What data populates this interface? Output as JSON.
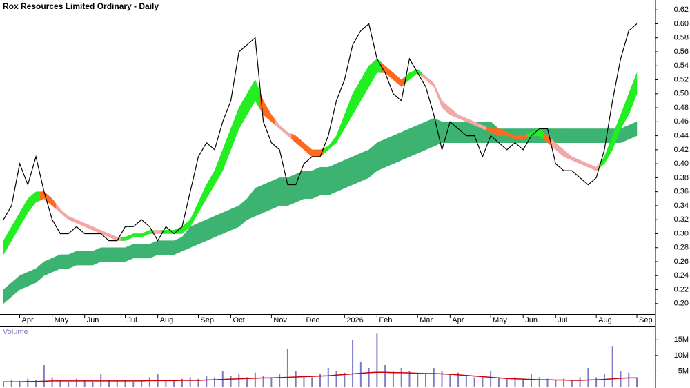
{
  "chart_data": [
    {
      "type": "line",
      "title": "Rox Resources Limited Ordinary - Daily",
      "categories": [
        null,
        null,
        "Apr",
        null,
        null,
        null,
        "May",
        null,
        null,
        null,
        "Jun",
        null,
        null,
        null,
        null,
        "Jul",
        null,
        null,
        null,
        "Aug",
        null,
        null,
        null,
        null,
        "Sep",
        null,
        null,
        null,
        "Oct",
        null,
        null,
        null,
        null,
        "Nov",
        null,
        null,
        null,
        "Dec",
        null,
        null,
        null,
        null,
        "2026",
        null,
        null,
        null,
        "Feb",
        null,
        null,
        null,
        null,
        "Mar",
        null,
        null,
        null,
        "Apr",
        null,
        null,
        null,
        null,
        "May",
        null,
        null,
        null,
        "Jun",
        null,
        null,
        null,
        "Jul",
        null,
        null,
        null,
        null,
        "Aug",
        null,
        null,
        null,
        null,
        "Sep"
      ],
      "series": [
        {
          "color": "#000000",
          "values": [
            0.32,
            0.34,
            0.4,
            0.37,
            0.41,
            0.36,
            0.32,
            0.3,
            0.3,
            0.31,
            0.3,
            0.3,
            0.3,
            0.29,
            0.29,
            0.31,
            0.31,
            0.32,
            0.31,
            0.29,
            0.31,
            0.3,
            0.31,
            0.36,
            0.41,
            0.43,
            0.42,
            0.46,
            0.49,
            0.56,
            0.57,
            0.58,
            0.46,
            0.43,
            0.42,
            0.37,
            0.37,
            0.4,
            0.41,
            0.41,
            0.44,
            0.49,
            0.52,
            0.57,
            0.59,
            0.6,
            0.55,
            0.53,
            0.5,
            0.49,
            0.55,
            0.53,
            0.51,
            0.47,
            0.42,
            0.46,
            0.45,
            0.44,
            0.44,
            0.41,
            0.44,
            0.43,
            0.42,
            0.43,
            0.42,
            0.44,
            0.45,
            0.45,
            0.4,
            0.39,
            0.39,
            0.38,
            0.37,
            0.38,
            0.42,
            0.49,
            0.55,
            0.59,
            0.6
          ]
        }
      ],
      "bands": [
        {
          "color": "#3cb371",
          "lower": [
            0.2,
            0.21,
            0.22,
            0.225,
            0.23,
            0.24,
            0.245,
            0.25,
            0.25,
            0.255,
            0.255,
            0.255,
            0.26,
            0.26,
            0.26,
            0.26,
            0.265,
            0.265,
            0.265,
            0.27,
            0.27,
            0.27,
            0.275,
            0.28,
            0.285,
            0.29,
            0.295,
            0.3,
            0.305,
            0.31,
            0.32,
            0.325,
            0.33,
            0.335,
            0.34,
            0.34,
            0.345,
            0.35,
            0.35,
            0.355,
            0.355,
            0.36,
            0.365,
            0.37,
            0.375,
            0.38,
            0.39,
            0.395,
            0.4,
            0.405,
            0.41,
            0.415,
            0.42,
            0.425,
            0.43,
            0.43,
            0.43,
            0.43,
            0.43,
            0.43,
            0.43,
            0.43,
            0.43,
            0.43,
            0.43,
            0.43,
            0.43,
            0.43,
            0.43,
            0.43,
            0.43,
            0.43,
            0.43,
            0.43,
            0.43,
            0.43,
            0.43,
            0.435,
            0.44
          ],
          "upper": [
            0.22,
            0.23,
            0.24,
            0.245,
            0.25,
            0.26,
            0.265,
            0.27,
            0.27,
            0.275,
            0.275,
            0.275,
            0.28,
            0.28,
            0.28,
            0.28,
            0.285,
            0.285,
            0.285,
            0.29,
            0.29,
            0.29,
            0.295,
            0.31,
            0.315,
            0.32,
            0.325,
            0.33,
            0.335,
            0.34,
            0.35,
            0.365,
            0.37,
            0.375,
            0.38,
            0.38,
            0.385,
            0.39,
            0.39,
            0.395,
            0.395,
            0.4,
            0.405,
            0.41,
            0.415,
            0.42,
            0.43,
            0.435,
            0.44,
            0.445,
            0.45,
            0.455,
            0.46,
            0.465,
            0.46,
            0.46,
            0.46,
            0.46,
            0.46,
            0.46,
            0.46,
            0.45,
            0.45,
            0.45,
            0.45,
            0.45,
            0.45,
            0.45,
            0.45,
            0.45,
            0.45,
            0.45,
            0.45,
            0.45,
            0.45,
            0.45,
            0.45,
            0.455,
            0.46
          ]
        },
        {
          "lower": [
            0.27,
            0.29,
            0.31,
            0.33,
            0.345,
            0.35,
            0.34,
            0.33,
            0.32,
            0.315,
            0.31,
            0.305,
            0.3,
            0.295,
            0.29,
            0.29,
            0.295,
            0.295,
            0.3,
            0.3,
            0.3,
            0.3,
            0.3,
            0.31,
            0.33,
            0.35,
            0.37,
            0.39,
            0.42,
            0.45,
            0.47,
            0.49,
            0.47,
            0.46,
            0.45,
            0.44,
            0.43,
            0.42,
            0.41,
            0.41,
            0.42,
            0.43,
            0.45,
            0.47,
            0.49,
            0.51,
            0.53,
            0.53,
            0.52,
            0.51,
            0.52,
            0.53,
            0.52,
            0.51,
            0.48,
            0.47,
            0.465,
            0.46,
            0.455,
            0.45,
            0.445,
            0.44,
            0.44,
            0.435,
            0.435,
            0.44,
            0.44,
            0.43,
            0.42,
            0.41,
            0.405,
            0.4,
            0.395,
            0.39,
            0.4,
            0.42,
            0.45,
            0.47,
            0.5
          ],
          "upper": [
            0.29,
            0.31,
            0.33,
            0.35,
            0.36,
            0.36,
            0.35,
            0.335,
            0.325,
            0.32,
            0.315,
            0.31,
            0.305,
            0.3,
            0.295,
            0.295,
            0.3,
            0.3,
            0.305,
            0.305,
            0.305,
            0.305,
            0.31,
            0.32,
            0.345,
            0.37,
            0.39,
            0.42,
            0.45,
            0.48,
            0.5,
            0.52,
            0.49,
            0.47,
            0.455,
            0.445,
            0.44,
            0.43,
            0.42,
            0.42,
            0.425,
            0.44,
            0.47,
            0.5,
            0.52,
            0.54,
            0.55,
            0.54,
            0.53,
            0.52,
            0.53,
            0.535,
            0.525,
            0.515,
            0.49,
            0.48,
            0.47,
            0.465,
            0.46,
            0.455,
            0.45,
            0.45,
            0.445,
            0.44,
            0.44,
            0.445,
            0.45,
            0.44,
            0.43,
            0.42,
            0.41,
            0.405,
            0.4,
            0.395,
            0.41,
            0.44,
            0.47,
            0.5,
            0.53
          ],
          "colors": [
            "#22ee22",
            "#22ee22",
            "#22ee22",
            "#22ee22",
            "#22ee22",
            "#ff6a1f",
            "#ff6a1f",
            "#f4a7a7",
            "#f4a7a7",
            "#f4a7a7",
            "#f4a7a7",
            "#f4a7a7",
            "#f4a7a7",
            "#f4a7a7",
            "#f4a7a7",
            "#22ee22",
            "#22ee22",
            "#22ee22",
            "#22ee22",
            "#f4a7a7",
            "#22ee22",
            "#22ee22",
            "#22ee22",
            "#22ee22",
            "#22ee22",
            "#22ee22",
            "#22ee22",
            "#22ee22",
            "#22ee22",
            "#22ee22",
            "#22ee22",
            "#22ee22",
            "#ff6a1f",
            "#ff6a1f",
            "#f4a7a7",
            "#f4a7a7",
            "#ff6a1f",
            "#ff6a1f",
            "#ff6a1f",
            "#ff6a1f",
            "#22ee22",
            "#22ee22",
            "#22ee22",
            "#22ee22",
            "#22ee22",
            "#22ee22",
            "#22ee22",
            "#ff6a1f",
            "#ff6a1f",
            "#ff6a1f",
            "#22ee22",
            "#22ee22",
            "#f4a7a7",
            "#f4a7a7",
            "#f4a7a7",
            "#f4a7a7",
            "#f4a7a7",
            "#f4a7a7",
            "#f4a7a7",
            "#f4a7a7",
            "#ff6a1f",
            "#ff6a1f",
            "#ff6a1f",
            "#ff6a1f",
            "#ff6a1f",
            "#22ee22",
            "#22ee22",
            "#ff6a1f",
            "#f4a7a7",
            "#f4a7a7",
            "#f4a7a7",
            "#f4a7a7",
            "#f4a7a7",
            "#f4a7a7",
            "#22ee22",
            "#22ee22",
            "#22ee22",
            "#22ee22",
            "#22ee22"
          ]
        }
      ],
      "ylim": [
        0.185,
        0.634
      ],
      "yticks": [
        {
          "value": 0.2,
          "label": "0.20"
        },
        0.22,
        0.24,
        0.26,
        0.28,
        {
          "value": 0.3,
          "label": "0.30"
        },
        0.32,
        0.34,
        0.36,
        0.38,
        {
          "value": 0.4,
          "label": "0.40"
        },
        0.42,
        0.44,
        0.46,
        0.48,
        {
          "value": 0.5,
          "label": "0.50"
        },
        0.52,
        0.54,
        0.56,
        0.58,
        {
          "value": 0.6,
          "label": "0.60"
        },
        0.62
      ],
      "grid": false
    },
    {
      "type": "bar",
      "title": "Volume",
      "color": "#7b7bc8",
      "values": [
        1500000,
        2000000,
        1800000,
        2500000,
        2200000,
        7000000,
        3000000,
        2000000,
        1500000,
        2500000,
        2000000,
        1500000,
        4000000,
        2000000,
        1800000,
        2200000,
        1500000,
        2000000,
        3000000,
        4000000,
        2000000,
        1800000,
        2500000,
        3000000,
        2500000,
        3500000,
        3000000,
        5000000,
        3500000,
        4000000,
        3000000,
        4500000,
        3500000,
        3000000,
        4000000,
        12000000,
        5000000,
        3500000,
        3000000,
        4000000,
        6000000,
        5000000,
        4500000,
        15000000,
        8000000,
        6000000,
        17000000,
        7000000,
        5000000,
        6000000,
        5000000,
        4500000,
        4000000,
        6000000,
        5000000,
        4000000,
        4500000,
        3500000,
        3000000,
        3500000,
        5000000,
        3000000,
        2500000,
        3000000,
        2500000,
        4000000,
        3000000,
        2500000,
        2000000,
        2500000,
        2000000,
        3000000,
        6000000,
        3000000,
        4000000,
        13000000,
        5000000,
        4500000,
        3000000
      ],
      "average": {
        "color": "#cc0000",
        "values": [
          1500000,
          1500000,
          1500000,
          1600000,
          1600000,
          1700000,
          1800000,
          1800000,
          1800000,
          1800000,
          1800000,
          1800000,
          1800000,
          1800000,
          1800000,
          1800000,
          1800000,
          1800000,
          1900000,
          1900000,
          1900000,
          1900000,
          2000000,
          2000000,
          2000000,
          2100000,
          2200000,
          2300000,
          2400000,
          2500000,
          2600000,
          2700000,
          2800000,
          2800000,
          2900000,
          3000000,
          3100000,
          3200000,
          3300000,
          3400000,
          3500000,
          3700000,
          3900000,
          4100000,
          4300000,
          4500000,
          4600000,
          4600000,
          4500000,
          4500000,
          4400000,
          4300000,
          4200000,
          4200000,
          4100000,
          4000000,
          3800000,
          3600000,
          3400000,
          3200000,
          3000000,
          2800000,
          2600000,
          2500000,
          2400000,
          2300000,
          2200000,
          2200000,
          2100000,
          2100000,
          2000000,
          2000000,
          2100000,
          2200000,
          2300000,
          2500000,
          2700000,
          2800000,
          2800000
        ]
      },
      "ylim": [
        0,
        19500000
      ],
      "yticks": [
        {
          "value": 5000000,
          "label": "5M"
        },
        {
          "value": 10000000,
          "label": "10M"
        },
        {
          "value": 15000000,
          "label": "15M"
        }
      ]
    }
  ]
}
